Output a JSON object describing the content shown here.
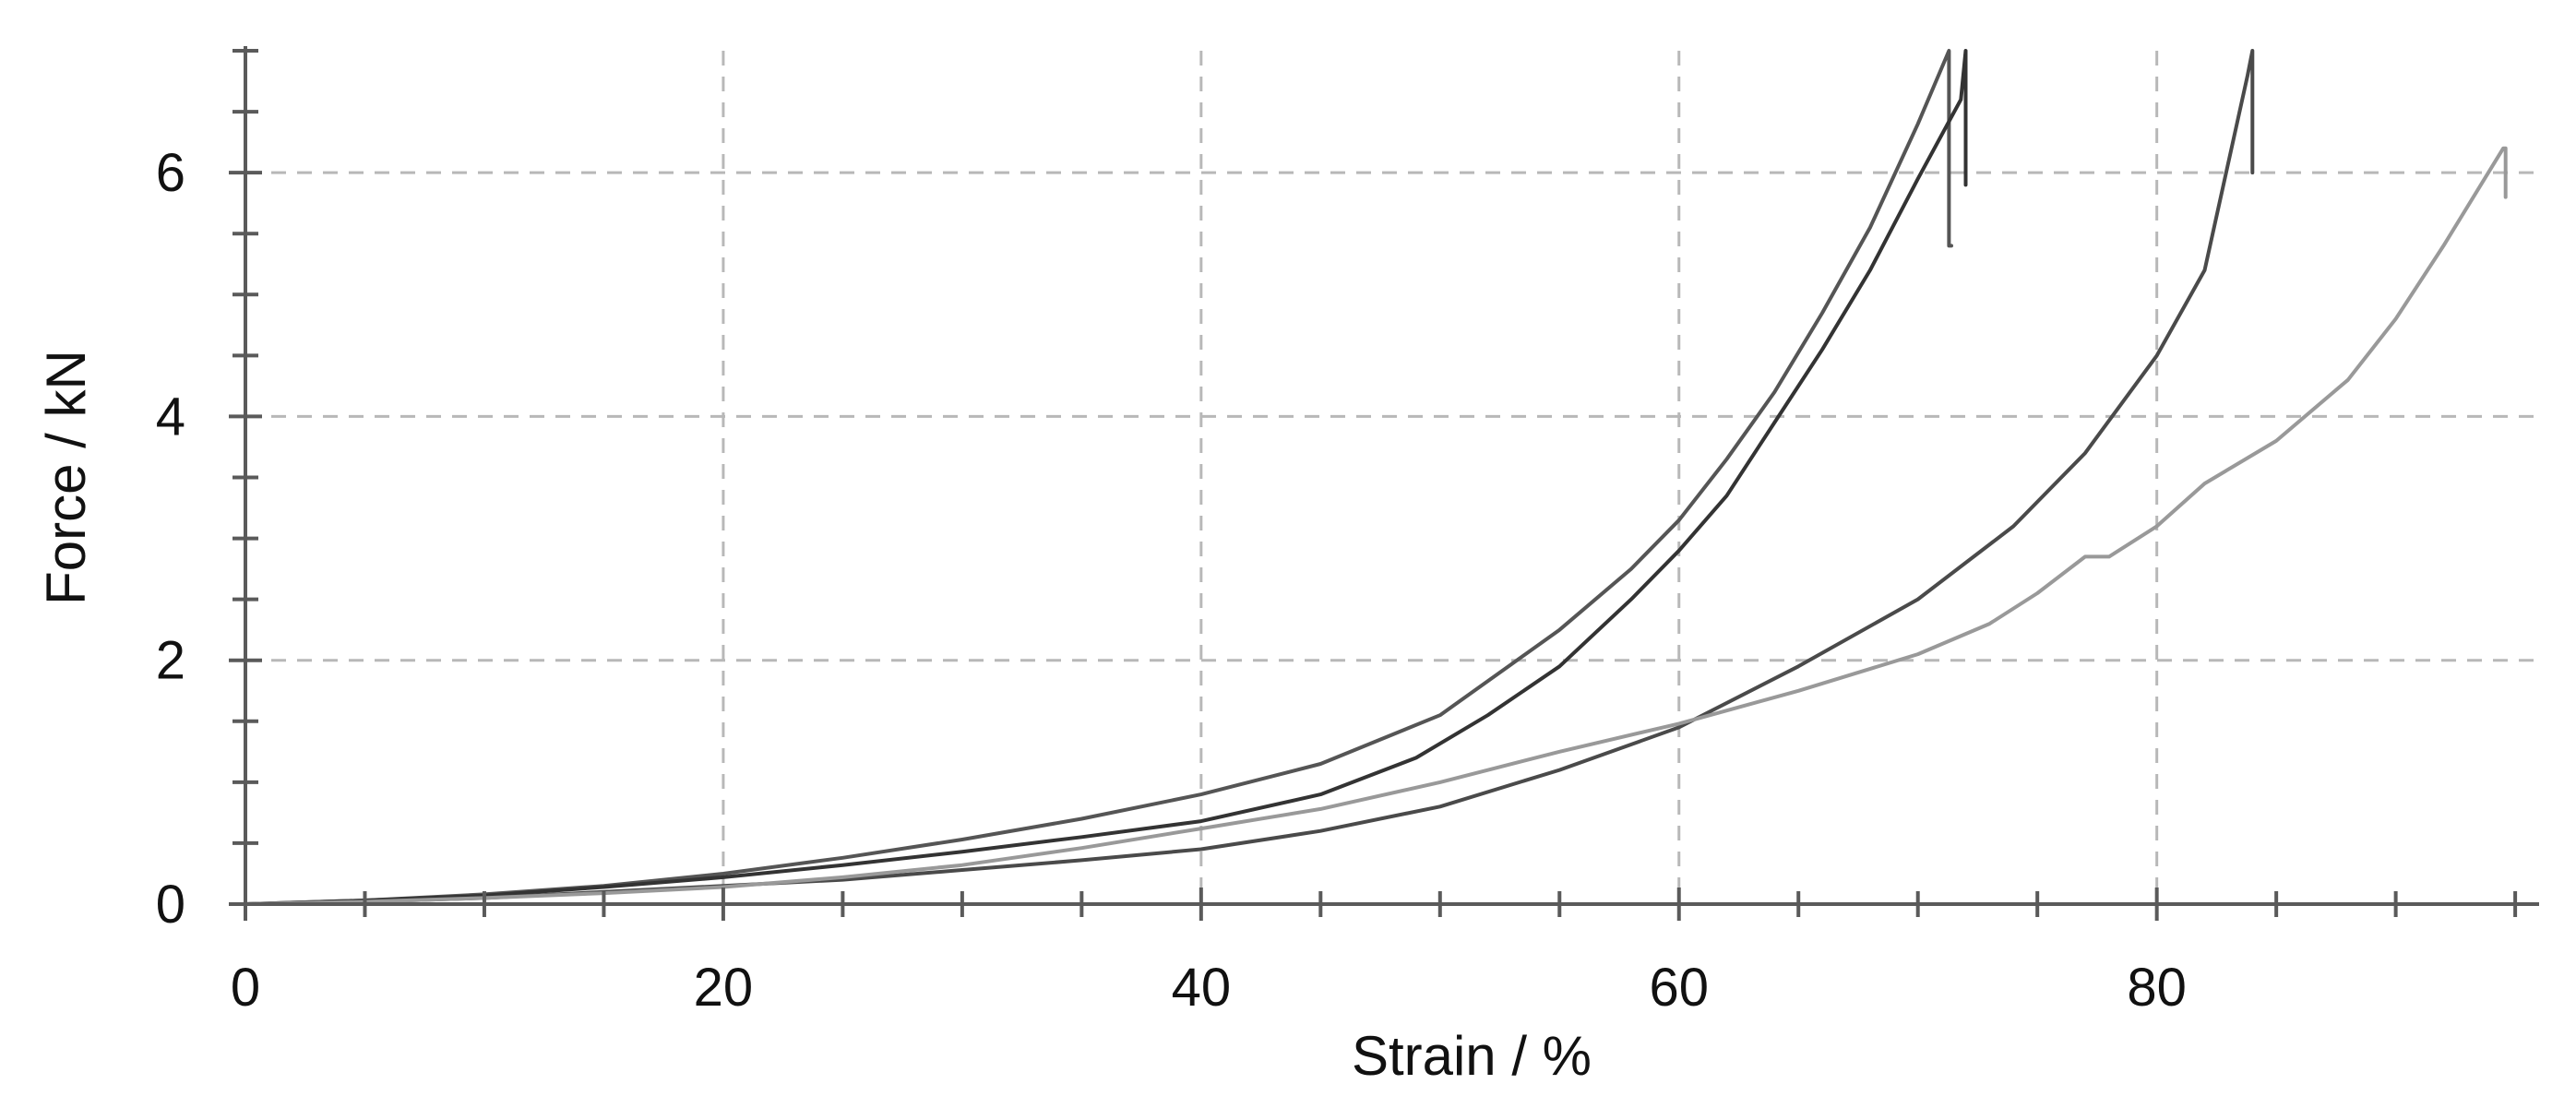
{
  "chart_data": {
    "type": "line",
    "title": "",
    "xlabel": "Strain / %",
    "ylabel": "Force / kN",
    "xlim": [
      0,
      96
    ],
    "ylim": [
      0,
      7
    ],
    "x_ticks": [
      0,
      20,
      40,
      60,
      80
    ],
    "x_tick_labels": [
      "0",
      "20",
      "40",
      "60",
      "80"
    ],
    "x_minor_step": 5,
    "y_ticks": [
      0,
      2,
      4,
      6
    ],
    "y_tick_labels": [
      "0",
      "2",
      "4",
      "6"
    ],
    "y_minor_step": 0.5,
    "grid": true,
    "legend": "none",
    "series": [
      {
        "color": "#555555",
        "x": [
          0,
          5,
          10,
          15,
          20,
          25,
          30,
          35,
          40,
          45,
          50,
          53,
          55,
          58,
          60,
          62,
          64,
          66,
          68,
          70,
          71.3,
          71.3,
          71.4
        ],
        "y": [
          0,
          0.03,
          0.08,
          0.15,
          0.25,
          0.38,
          0.53,
          0.7,
          0.9,
          1.15,
          1.55,
          1.97,
          2.25,
          2.75,
          3.15,
          3.65,
          4.2,
          4.85,
          5.55,
          6.4,
          7.0,
          5.4,
          5.4
        ]
      },
      {
        "color": "#333333",
        "x": [
          0,
          5,
          10,
          15,
          20,
          25,
          30,
          35,
          40,
          45,
          49,
          52,
          55,
          58,
          60,
          62,
          64,
          66,
          68,
          70,
          71.8,
          72.0,
          72.0
        ],
        "y": [
          0,
          0.03,
          0.07,
          0.14,
          0.22,
          0.32,
          0.43,
          0.55,
          0.68,
          0.9,
          1.2,
          1.55,
          1.95,
          2.5,
          2.9,
          3.35,
          3.95,
          4.55,
          5.2,
          5.95,
          6.6,
          7.0,
          5.9
        ]
      },
      {
        "color": "#4a4a4a",
        "x": [
          0,
          5,
          10,
          15,
          20,
          25,
          30,
          35,
          40,
          45,
          50,
          55,
          60,
          65,
          70,
          74,
          77,
          80,
          82,
          83.8,
          84.0,
          84.0
        ],
        "y": [
          0,
          0.02,
          0.05,
          0.1,
          0.15,
          0.2,
          0.28,
          0.36,
          0.45,
          0.6,
          0.8,
          1.1,
          1.45,
          1.95,
          2.5,
          3.1,
          3.7,
          4.5,
          5.2,
          6.8,
          7.0,
          6.0
        ]
      },
      {
        "color": "#999999",
        "x": [
          0,
          5,
          10,
          15,
          20,
          25,
          30,
          35,
          40,
          45,
          50,
          55,
          60,
          65,
          70,
          73,
          75,
          77,
          78,
          80,
          82,
          85,
          88,
          90,
          92,
          94.5,
          94.6,
          94.6
        ],
        "y": [
          0,
          0.02,
          0.05,
          0.09,
          0.14,
          0.22,
          0.32,
          0.46,
          0.62,
          0.78,
          1.0,
          1.25,
          1.48,
          1.75,
          2.05,
          2.3,
          2.55,
          2.85,
          2.85,
          3.1,
          3.45,
          3.8,
          4.3,
          4.8,
          5.4,
          6.2,
          6.2,
          5.8
        ]
      }
    ]
  }
}
